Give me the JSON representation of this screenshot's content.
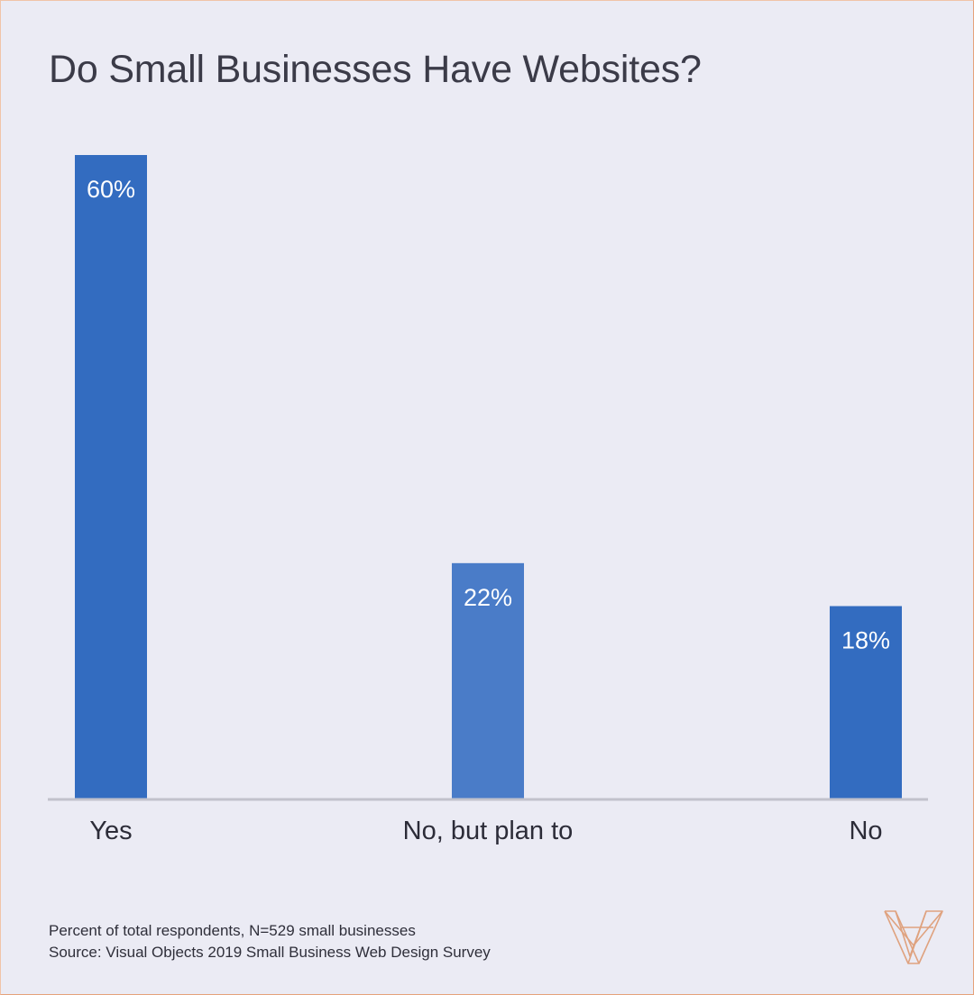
{
  "chart_data": {
    "type": "bar",
    "title": "Do Small Businesses Have Websites?",
    "categories": [
      "Yes",
      "No, but plan to",
      "No"
    ],
    "values": [
      60,
      22,
      18
    ],
    "data_labels": [
      "60%",
      "22%",
      "18%"
    ],
    "unit": "%",
    "ylim": [
      0,
      60
    ],
    "xlabel": "",
    "ylabel": "",
    "grid": false,
    "legend": "none",
    "colors": [
      "#336cc0",
      "#4a7cc8",
      "#336cc0"
    ]
  },
  "footnotes": {
    "line1": "Percent of total respondents, N=529 small businesses",
    "line2": "Source: Visual Objects 2019 Small Business Web Design Survey"
  },
  "colors": {
    "background": "#ebebf4",
    "border": "#e6a27a",
    "axis": "#c2c2cc",
    "logo": "#dfa27f"
  },
  "logo_icon": "visual-objects-logo-icon"
}
